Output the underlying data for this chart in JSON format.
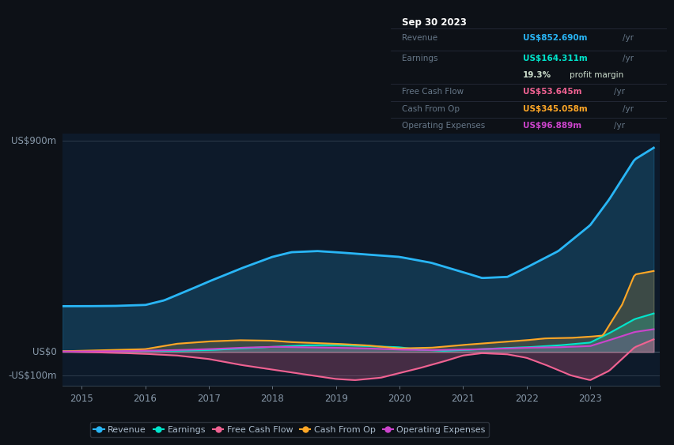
{
  "bg_color": "#0d1117",
  "plot_bg_color": "#0d1a2a",
  "grid_color": "#2a3a4a",
  "colors": {
    "revenue": "#29b6f6",
    "earnings": "#00e5cc",
    "free_cash_flow": "#f06292",
    "cash_from_op": "#ffa726",
    "operating_expenses": "#cc44cc"
  },
  "tooltip": {
    "date": "Sep 30 2023",
    "revenue_label": "Revenue",
    "revenue_val": "US$852.690m",
    "earnings_label": "Earnings",
    "earnings_val": "US$164.311m",
    "profit_margin": "19.3%",
    "fcf_label": "Free Cash Flow",
    "fcf_val": "US$53.645m",
    "cashop_label": "Cash From Op",
    "cashop_val": "US$345.058m",
    "opex_label": "Operating Expenses",
    "opex_val": "US$96.889m"
  },
  "x_ticks": [
    2015,
    2016,
    2017,
    2018,
    2019,
    2020,
    2021,
    2022,
    2023
  ],
  "ylabel_900": "US$900m",
  "ylabel_0": "US$0",
  "ylabel_neg100": "-US$100m"
}
